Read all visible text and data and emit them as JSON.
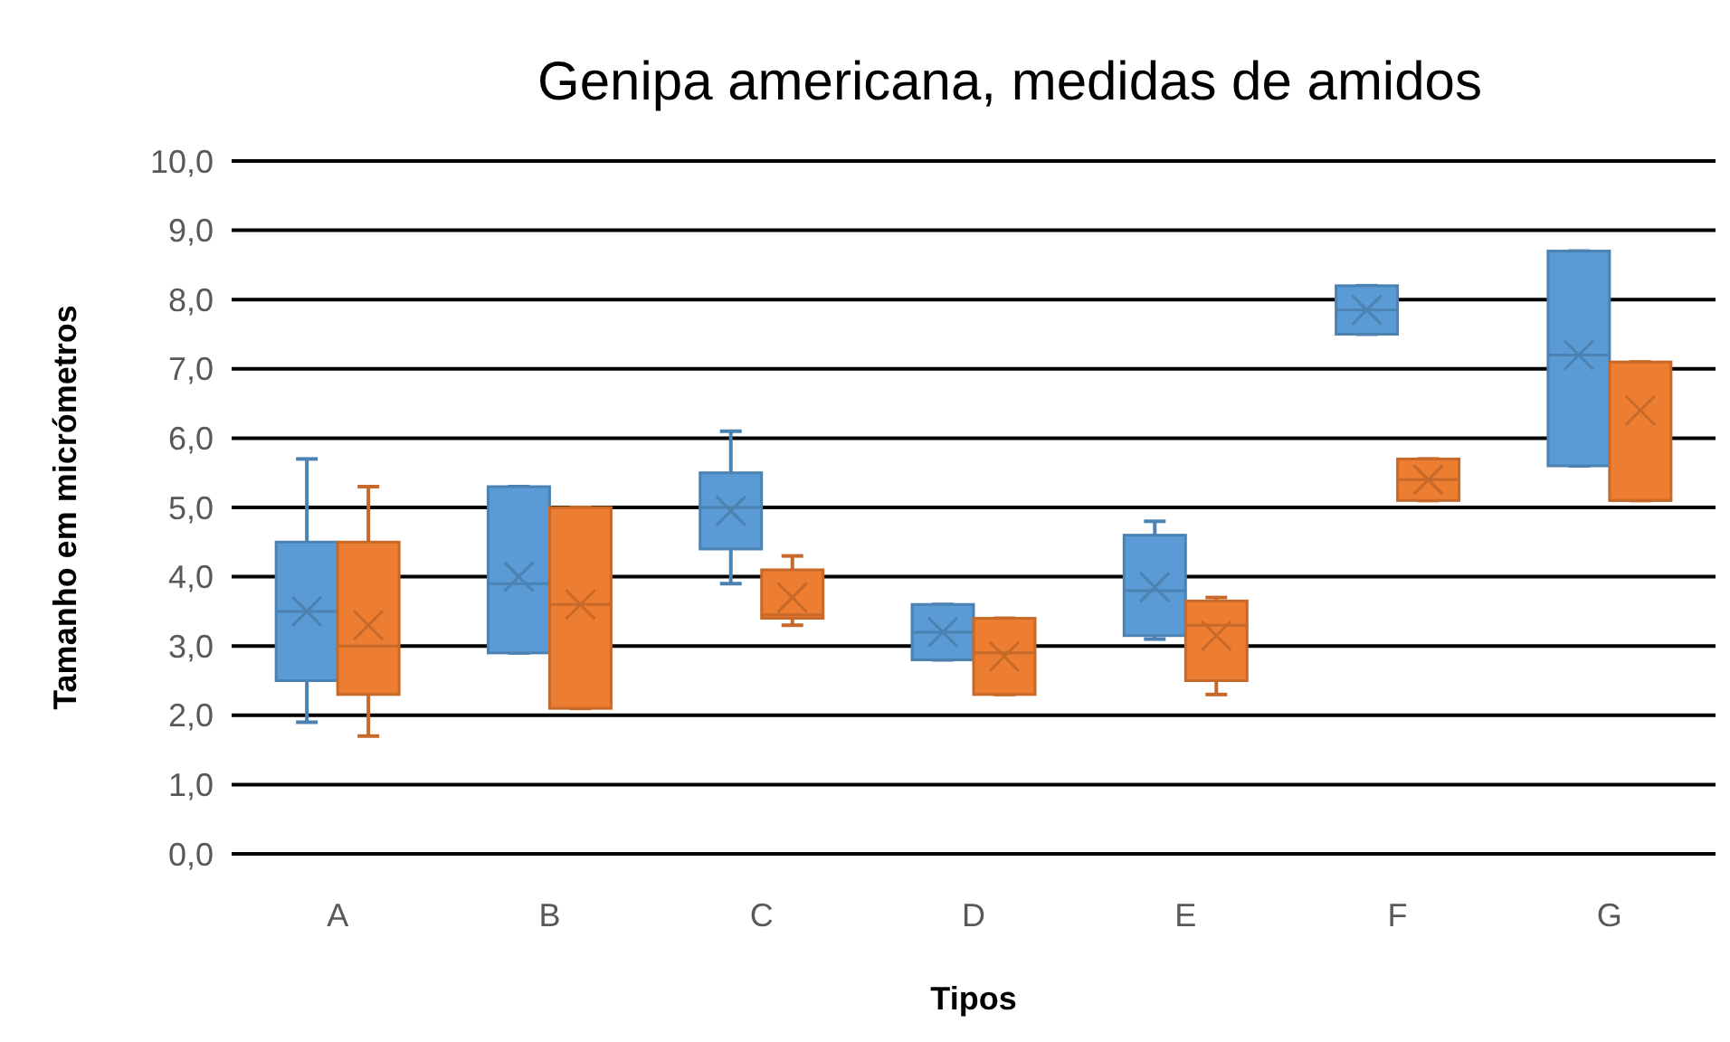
{
  "chart_data": {
    "type": "box",
    "title": "Genipa americana, medidas de amidos",
    "xlabel": "Tipos",
    "ylabel": "Tamanho em micrómetros",
    "categories": [
      "A",
      "B",
      "C",
      "D",
      "E",
      "F",
      "G"
    ],
    "series": [
      {
        "color": "#5b9bd5",
        "boxes": [
          {
            "low": 1.9,
            "q1": 2.5,
            "median": 3.5,
            "q3": 4.5,
            "high": 5.7,
            "mean": 3.5
          },
          {
            "low": 2.9,
            "q1": 2.9,
            "median": 3.9,
            "q3": 5.3,
            "high": 5.3,
            "mean": 4.0
          },
          {
            "low": 3.9,
            "q1": 4.4,
            "median": 5.0,
            "q3": 5.5,
            "high": 6.1,
            "mean": 4.95
          },
          {
            "low": 2.8,
            "q1": 2.8,
            "median": 3.2,
            "q3": 3.6,
            "high": 3.6,
            "mean": 3.2
          },
          {
            "low": 3.1,
            "q1": 3.15,
            "median": 3.8,
            "q3": 4.6,
            "high": 4.8,
            "mean": 3.85
          },
          {
            "low": 7.5,
            "q1": 7.5,
            "median": 7.85,
            "q3": 8.2,
            "high": 8.2,
            "mean": 7.85
          },
          {
            "low": 5.6,
            "q1": 5.6,
            "median": 7.2,
            "q3": 8.7,
            "high": 8.7,
            "mean": 7.2
          }
        ]
      },
      {
        "color": "#ed7d31",
        "boxes": [
          {
            "low": 1.7,
            "q1": 2.3,
            "median": 3.0,
            "q3": 4.5,
            "high": 5.3,
            "mean": 3.3
          },
          {
            "low": 2.1,
            "q1": 2.1,
            "median": 3.6,
            "q3": 5.0,
            "high": 5.0,
            "mean": 3.6
          },
          {
            "low": 3.3,
            "q1": 3.4,
            "median": 3.45,
            "q3": 4.1,
            "high": 4.3,
            "mean": 3.7
          },
          {
            "low": 2.3,
            "q1": 2.3,
            "median": 2.9,
            "q3": 3.4,
            "high": 3.4,
            "mean": 2.85
          },
          {
            "low": 2.3,
            "q1": 2.5,
            "median": 3.3,
            "q3": 3.65,
            "high": 3.7,
            "mean": 3.15
          },
          {
            "low": 5.1,
            "q1": 5.1,
            "median": 5.4,
            "q3": 5.7,
            "high": 5.7,
            "mean": 5.4
          },
          {
            "low": 5.1,
            "q1": 5.1,
            "median": 5.1,
            "q3": 7.1,
            "high": 7.1,
            "mean": 6.4
          }
        ]
      }
    ],
    "ylim": [
      0,
      10
    ],
    "yticks": [
      {
        "value": 0,
        "label": "0,0"
      },
      {
        "value": 1,
        "label": "1,0"
      },
      {
        "value": 2,
        "label": "2,0"
      },
      {
        "value": 3,
        "label": "3,0"
      },
      {
        "value": 4,
        "label": "4,0"
      },
      {
        "value": 5,
        "label": "5,0"
      },
      {
        "value": 6,
        "label": "6,0"
      },
      {
        "value": 7,
        "label": "7,0"
      },
      {
        "value": 8,
        "label": "8,0"
      },
      {
        "value": 9,
        "label": "9,0"
      },
      {
        "value": 10,
        "label": "10,0"
      }
    ],
    "grid": "y"
  }
}
